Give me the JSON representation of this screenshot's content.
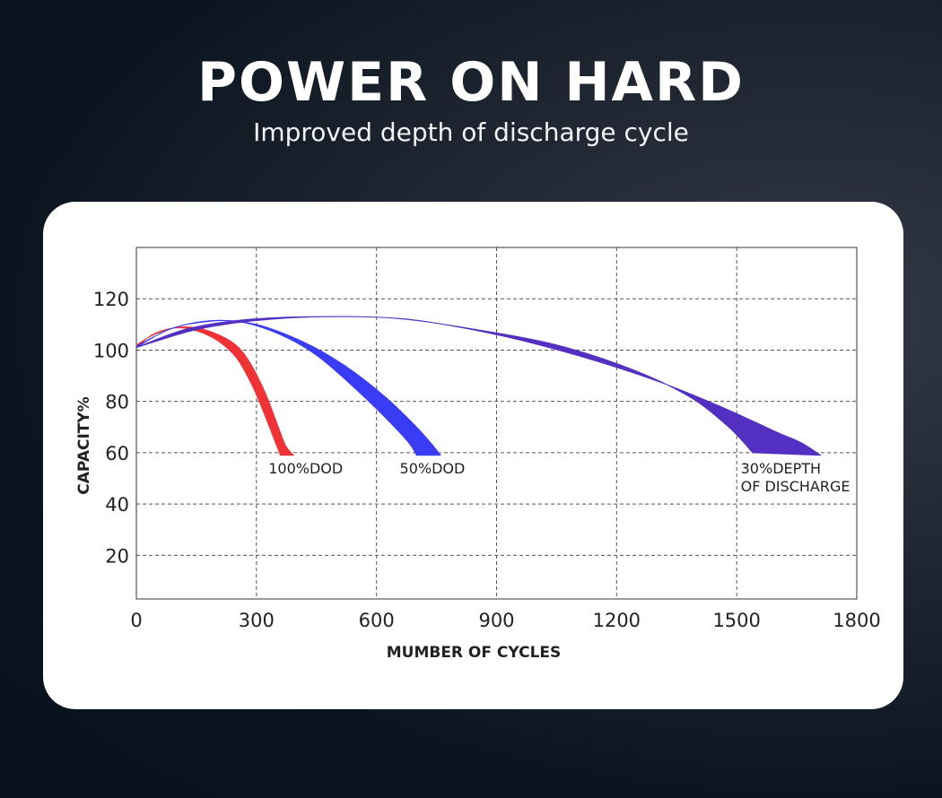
{
  "title": "POWER ON HARD",
  "subtitle": "Improved depth of discharge cycle",
  "chart_data": {
    "type": "area",
    "xlabel": "MUMBER OF CYCLES",
    "ylabel": "CAPACITY%",
    "xlim": [
      0,
      1800
    ],
    "ylim": [
      3,
      140
    ],
    "xticks": [
      0,
      300,
      600,
      900,
      1200,
      1500,
      1800
    ],
    "yticks": [
      20,
      40,
      60,
      80,
      100,
      120
    ],
    "grid": true,
    "colors": {
      "dod100": "#ef3236",
      "dod50": "#3a3cf5",
      "dod30": "#5330c1"
    },
    "series": [
      {
        "label": "100%DOD",
        "color": "#ef3236",
        "upper": [
          [
            0,
            101
          ],
          [
            40,
            106
          ],
          [
            90,
            108.5
          ],
          [
            140,
            108
          ],
          [
            200,
            104
          ],
          [
            250,
            97
          ],
          [
            290,
            86
          ],
          [
            320,
            75
          ],
          [
            345,
            65
          ],
          [
            360,
            59
          ]
        ],
        "lower": [
          [
            0,
            102
          ],
          [
            50,
            106.5
          ],
          [
            110,
            109
          ],
          [
            170,
            108
          ],
          [
            240,
            103
          ],
          [
            280,
            96
          ],
          [
            320,
            84
          ],
          [
            350,
            72
          ],
          [
            372,
            63
          ],
          [
            393,
            59
          ]
        ]
      },
      {
        "label": "50%DOD",
        "color": "#3a3cf5",
        "upper": [
          [
            0,
            101
          ],
          [
            80,
            108
          ],
          [
            170,
            111
          ],
          [
            260,
            111
          ],
          [
            360,
            106
          ],
          [
            450,
            98
          ],
          [
            540,
            86
          ],
          [
            620,
            74
          ],
          [
            680,
            64
          ],
          [
            700,
            59
          ]
        ],
        "lower": [
          [
            0,
            101.5
          ],
          [
            90,
            108.5
          ],
          [
            190,
            111.5
          ],
          [
            300,
            110
          ],
          [
            420,
            103
          ],
          [
            520,
            94
          ],
          [
            620,
            82
          ],
          [
            700,
            70
          ],
          [
            740,
            63
          ],
          [
            760,
            59
          ]
        ]
      },
      {
        "label": "30%DEPTH\nOF DISCHARGE",
        "color": "#5330c1",
        "upper": [
          [
            0,
            101
          ],
          [
            120,
            108
          ],
          [
            250,
            111.5
          ],
          [
            420,
            113
          ],
          [
            640,
            112.5
          ],
          [
            850,
            108
          ],
          [
            1050,
            102
          ],
          [
            1230,
            93
          ],
          [
            1380,
            82
          ],
          [
            1480,
            70
          ],
          [
            1540,
            60
          ]
        ],
        "lower": [
          [
            0,
            101
          ],
          [
            150,
            108
          ],
          [
            300,
            111.5
          ],
          [
            470,
            113
          ],
          [
            680,
            112
          ],
          [
            900,
            106
          ],
          [
            1100,
            98
          ],
          [
            1300,
            88
          ],
          [
            1460,
            78
          ],
          [
            1600,
            68
          ],
          [
            1660,
            64
          ],
          [
            1710,
            59
          ]
        ]
      }
    ],
    "annotations": [
      {
        "text": "100%DOD",
        "x": 330,
        "y": 54
      },
      {
        "text": "50%DOD",
        "x": 658,
        "y": 54
      },
      {
        "text": "30%DEPTH",
        "x": 1510,
        "y": 54
      },
      {
        "text": "OF DISCHARGE",
        "x": 1510,
        "y": 47
      }
    ]
  }
}
